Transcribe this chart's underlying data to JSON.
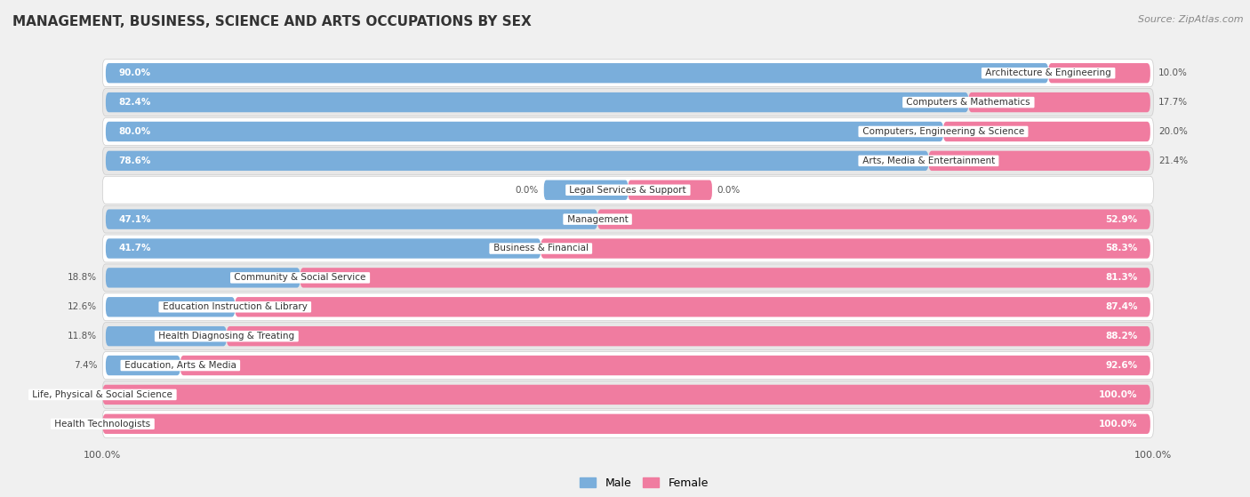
{
  "title": "MANAGEMENT, BUSINESS, SCIENCE AND ARTS OCCUPATIONS BY SEX",
  "source": "Source: ZipAtlas.com",
  "categories": [
    "Architecture & Engineering",
    "Computers & Mathematics",
    "Computers, Engineering & Science",
    "Arts, Media & Entertainment",
    "Legal Services & Support",
    "Management",
    "Business & Financial",
    "Community & Social Service",
    "Education Instruction & Library",
    "Health Diagnosing & Treating",
    "Education, Arts & Media",
    "Life, Physical & Social Science",
    "Health Technologists"
  ],
  "male": [
    90.0,
    82.4,
    80.0,
    78.6,
    0.0,
    47.1,
    41.7,
    18.8,
    12.6,
    11.8,
    7.4,
    0.0,
    0.0
  ],
  "female": [
    10.0,
    17.7,
    20.0,
    21.4,
    0.0,
    52.9,
    58.3,
    81.3,
    87.4,
    88.2,
    92.6,
    100.0,
    100.0
  ],
  "male_color": "#7aaedb",
  "female_color": "#f07ca0",
  "bg_color": "#f0f0f0",
  "row_color_even": "#ffffff",
  "row_color_odd": "#e8e8e8",
  "legend_male": "Male",
  "legend_female": "Female",
  "male_label_color_inside": "#ffffff",
  "male_label_color_outside": "#555555",
  "female_label_color_inside": "#ffffff",
  "female_label_color_outside": "#555555"
}
